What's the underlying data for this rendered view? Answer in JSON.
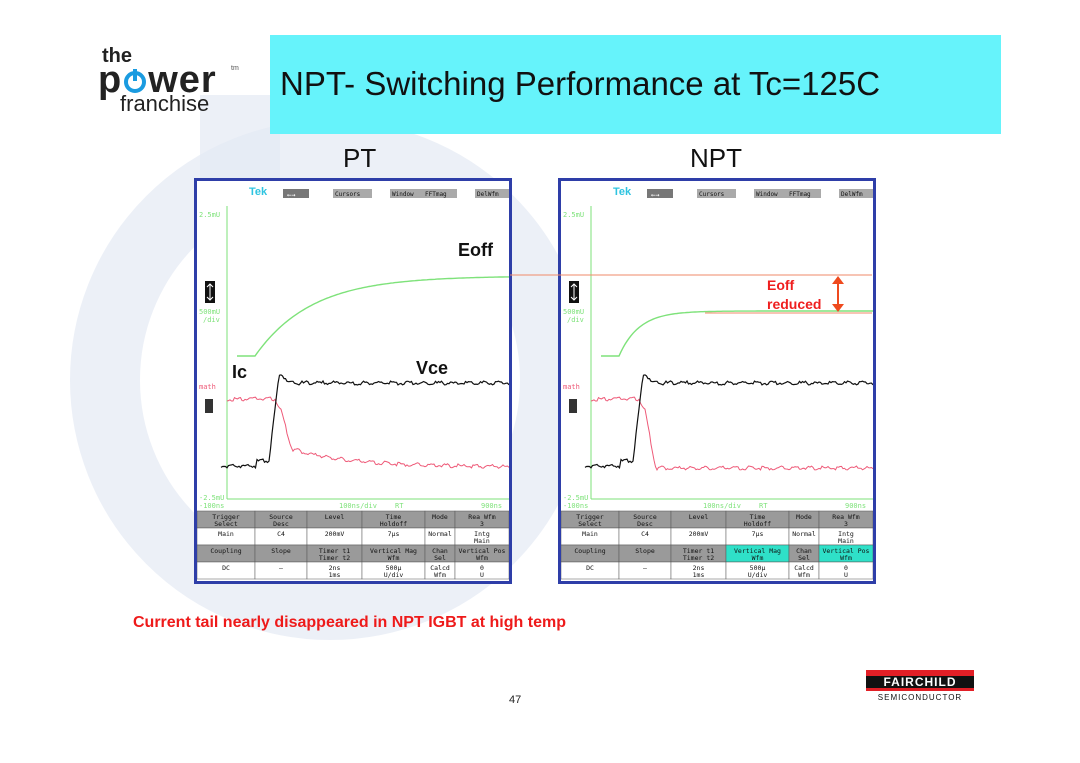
{
  "title": "NPT- Switching Performance at Tc=125C",
  "logo": {
    "the": "the",
    "power": "pwer",
    "tm": "tm",
    "franchise": "franchise"
  },
  "panels": {
    "left_label": "PT",
    "right_label": "NPT"
  },
  "annotations": {
    "eoff": "Eoff",
    "ic": "Ic",
    "vce": "Vce",
    "eoff_reduced": "Eoff reduced"
  },
  "scope_text": {
    "brand": "Tek",
    "menu": [
      "Cursors",
      "Window",
      "FFTmag",
      "DelWfm"
    ],
    "ch_top": "2.5mU",
    "ch_scale": "500mU",
    "ch_div": "/div",
    "math": "math",
    "ch_bottom": "-2.5mU",
    "time_left": "-100ns",
    "time_mid": "100ns/div",
    "time_mode": "RT",
    "time_right": "900ns",
    "row1": [
      "Trigger Select",
      "Source Desc",
      "Level",
      "Time Holdoff",
      "Mode",
      "Rea Wfm 3"
    ],
    "row2": [
      "Main",
      "C4",
      "200mV",
      "7μs",
      "Normal",
      "Intg Main"
    ],
    "row3": [
      "Coupling",
      "Slope",
      "Timer t1 Timer t2",
      "Vertical Mag Wfm",
      "Chan Sel",
      "Vertical Pos Wfm"
    ],
    "row4": [
      "DC",
      "–",
      "2ns 1ms",
      "500µ U/div",
      "Calcd Wfm",
      "0 U"
    ]
  },
  "caption": "Current tail nearly disappeared in NPT IGBT at high temp",
  "page_number": "47",
  "footer_logo": {
    "name": "FAIRCHILD",
    "sub": "SEMICONDUCTOR"
  },
  "colors": {
    "title_bg": "#66f3fb",
    "scope_border": "#2e3ea8",
    "energy_trace": "#7ee27a",
    "vce_trace": "#111111",
    "ic_trace": "#ee5a78",
    "highlight": "#ef1e1e"
  }
}
